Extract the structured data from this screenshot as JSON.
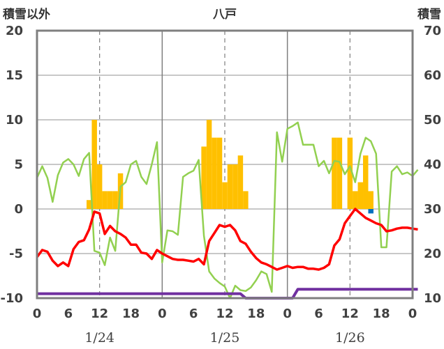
{
  "chart_data": {
    "type": "bar+line",
    "title": "八戸",
    "left_axis_title": "積雪以外",
    "right_axis_title": "積雪",
    "ylim_left": [
      -10,
      20
    ],
    "ylim_right": [
      10,
      70
    ],
    "y_ticks_left": [
      "20",
      "15",
      "10",
      "5",
      "0",
      "-5",
      "-10"
    ],
    "y_ticks_right": [
      "70",
      "60",
      "50",
      "40",
      "30",
      "20",
      "10"
    ],
    "x_ticks": [
      "0",
      "6",
      "12",
      "18",
      "0",
      "6",
      "12",
      "18",
      "0",
      "6",
      "12",
      "18",
      "0"
    ],
    "dates": [
      "1/24",
      "1/25",
      "1/26"
    ],
    "grid": "dashed at hour 12, solid at day boundaries",
    "colors": {
      "precip_bar": "#ffc000",
      "precip_bar_small": "#0070c0",
      "temperature": "#ff0000",
      "humidity_like": "#92d050",
      "snow_depth": "#7030a0"
    },
    "series": [
      {
        "role": "bar",
        "axis": "left",
        "color": "#ffc000",
        "points": [
          [
            10,
            1
          ],
          [
            11,
            10
          ],
          [
            12,
            5
          ],
          [
            13,
            2
          ],
          [
            14,
            2
          ],
          [
            15,
            2
          ],
          [
            16,
            4
          ],
          [
            32,
            7
          ],
          [
            33,
            10
          ],
          [
            34,
            8
          ],
          [
            35,
            8
          ],
          [
            36,
            3
          ],
          [
            37,
            5
          ],
          [
            38,
            5
          ],
          [
            39,
            6
          ],
          [
            40,
            2
          ],
          [
            57,
            8
          ],
          [
            58,
            8
          ],
          [
            60,
            8
          ],
          [
            61,
            2
          ],
          [
            62,
            3
          ],
          [
            63,
            6
          ],
          [
            64,
            2
          ]
        ]
      },
      {
        "role": "bar",
        "axis": "left",
        "color": "#0070c0",
        "points": [
          [
            64,
            -0.5
          ]
        ]
      },
      {
        "role": "line",
        "axis": "left",
        "color": "#92d050",
        "points": [
          [
            0,
            3.5
          ],
          [
            1,
            4.8
          ],
          [
            2,
            3.5
          ],
          [
            3,
            0.8
          ],
          [
            4,
            3.8
          ],
          [
            5,
            5.2
          ],
          [
            6,
            5.6
          ],
          [
            7,
            5
          ],
          [
            8,
            3.7
          ],
          [
            9,
            5.6
          ],
          [
            10,
            6.3
          ],
          [
            11,
            -4.7
          ],
          [
            12,
            -4.9
          ],
          [
            13,
            -6.3
          ],
          [
            14,
            -3.2
          ],
          [
            15,
            -4.7
          ],
          [
            16,
            2.5
          ],
          [
            17,
            3
          ],
          [
            18,
            5
          ],
          [
            19,
            5.4
          ],
          [
            20,
            3.6
          ],
          [
            21,
            2.8
          ],
          [
            22,
            5
          ],
          [
            23,
            7.5
          ],
          [
            24,
            -6
          ],
          [
            25,
            -2.4
          ],
          [
            26,
            -2.5
          ],
          [
            27,
            -2.9
          ],
          [
            28,
            3.6
          ],
          [
            29,
            4
          ],
          [
            30,
            4.3
          ],
          [
            31,
            5.5
          ],
          [
            32,
            -3
          ],
          [
            33,
            -7
          ],
          [
            34,
            -7.8
          ],
          [
            35,
            -8.3
          ],
          [
            36,
            -8.7
          ],
          [
            37,
            -10
          ],
          [
            38,
            -8.6
          ],
          [
            39,
            -9.1
          ],
          [
            40,
            -9.2
          ],
          [
            41,
            -8.8
          ],
          [
            42,
            -8
          ],
          [
            43,
            -7
          ],
          [
            44,
            -7.3
          ],
          [
            45,
            -9.3
          ],
          [
            46,
            8.6
          ],
          [
            47,
            5.3
          ],
          [
            48,
            9
          ],
          [
            49,
            9.3
          ],
          [
            50,
            9.7
          ],
          [
            51,
            7.2
          ],
          [
            52,
            7.2
          ],
          [
            53,
            7.2
          ],
          [
            54,
            4.8
          ],
          [
            55,
            5.4
          ],
          [
            56,
            4
          ],
          [
            57,
            5.4
          ],
          [
            58,
            5.3
          ],
          [
            59,
            3.9
          ],
          [
            60,
            4.8
          ],
          [
            61,
            3
          ],
          [
            62,
            6.2
          ],
          [
            63,
            8
          ],
          [
            64,
            7.6
          ],
          [
            65,
            6.2
          ],
          [
            66,
            -4.3
          ],
          [
            67,
            -4.3
          ],
          [
            68,
            4.2
          ],
          [
            69,
            4.8
          ],
          [
            70,
            3.9
          ],
          [
            71,
            4.1
          ],
          [
            72,
            3.7
          ],
          [
            73,
            4.4
          ]
        ]
      },
      {
        "role": "line",
        "axis": "left",
        "color": "#ff0000",
        "points": [
          [
            0,
            -5.4
          ],
          [
            1,
            -4.6
          ],
          [
            2,
            -4.8
          ],
          [
            3,
            -5.8
          ],
          [
            4,
            -6.4
          ],
          [
            5,
            -6
          ],
          [
            6,
            -6.4
          ],
          [
            7,
            -4.5
          ],
          [
            8,
            -3.7
          ],
          [
            9,
            -3.5
          ],
          [
            10,
            -2.3
          ],
          [
            11,
            -0.3
          ],
          [
            12,
            -0.5
          ],
          [
            13,
            -2.8
          ],
          [
            14,
            -1.9
          ],
          [
            15,
            -2.5
          ],
          [
            16,
            -2.8
          ],
          [
            17,
            -3.2
          ],
          [
            18,
            -4
          ],
          [
            19,
            -4
          ],
          [
            20,
            -4.9
          ],
          [
            21,
            -5
          ],
          [
            22,
            -5.6
          ],
          [
            23,
            -4.6
          ],
          [
            24,
            -5
          ],
          [
            25,
            -5.3
          ],
          [
            26,
            -5.6
          ],
          [
            27,
            -5.7
          ],
          [
            28,
            -5.7
          ],
          [
            29,
            -5.8
          ],
          [
            30,
            -5.9
          ],
          [
            31,
            -5.6
          ],
          [
            32,
            -6.2
          ],
          [
            33,
            -3.6
          ],
          [
            34,
            -2.7
          ],
          [
            35,
            -1.8
          ],
          [
            36,
            -2
          ],
          [
            37,
            -1.8
          ],
          [
            38,
            -2.4
          ],
          [
            39,
            -3.6
          ],
          [
            40,
            -3.9
          ],
          [
            41,
            -4.8
          ],
          [
            42,
            -5.5
          ],
          [
            43,
            -6
          ],
          [
            44,
            -6.2
          ],
          [
            45,
            -6.5
          ],
          [
            46,
            -6.8
          ],
          [
            47,
            -6.6
          ],
          [
            48,
            -6.4
          ],
          [
            49,
            -6.6
          ],
          [
            50,
            -6.5
          ],
          [
            51,
            -6.5
          ],
          [
            52,
            -6.7
          ],
          [
            53,
            -6.7
          ],
          [
            54,
            -6.8
          ],
          [
            55,
            -6.6
          ],
          [
            56,
            -6.2
          ],
          [
            57,
            -4.1
          ],
          [
            58,
            -3.4
          ],
          [
            59,
            -1.6
          ],
          [
            60,
            -0.8
          ],
          [
            61,
            0
          ],
          [
            62,
            -0.5
          ],
          [
            63,
            -1
          ],
          [
            64,
            -1.3
          ],
          [
            65,
            -1.6
          ],
          [
            66,
            -1.8
          ],
          [
            67,
            -2.5
          ],
          [
            68,
            -2.4
          ],
          [
            69,
            -2.2
          ],
          [
            70,
            -2.1
          ],
          [
            71,
            -2.1
          ],
          [
            72,
            -2.2
          ],
          [
            73,
            -2.3
          ]
        ]
      },
      {
        "role": "line",
        "axis": "right",
        "color": "#7030a0",
        "points": [
          [
            0,
            11
          ],
          [
            33,
            11
          ],
          [
            34,
            11
          ],
          [
            39,
            11
          ],
          [
            40,
            10
          ],
          [
            49,
            10
          ],
          [
            50,
            12
          ],
          [
            73,
            12
          ]
        ]
      }
    ]
  }
}
